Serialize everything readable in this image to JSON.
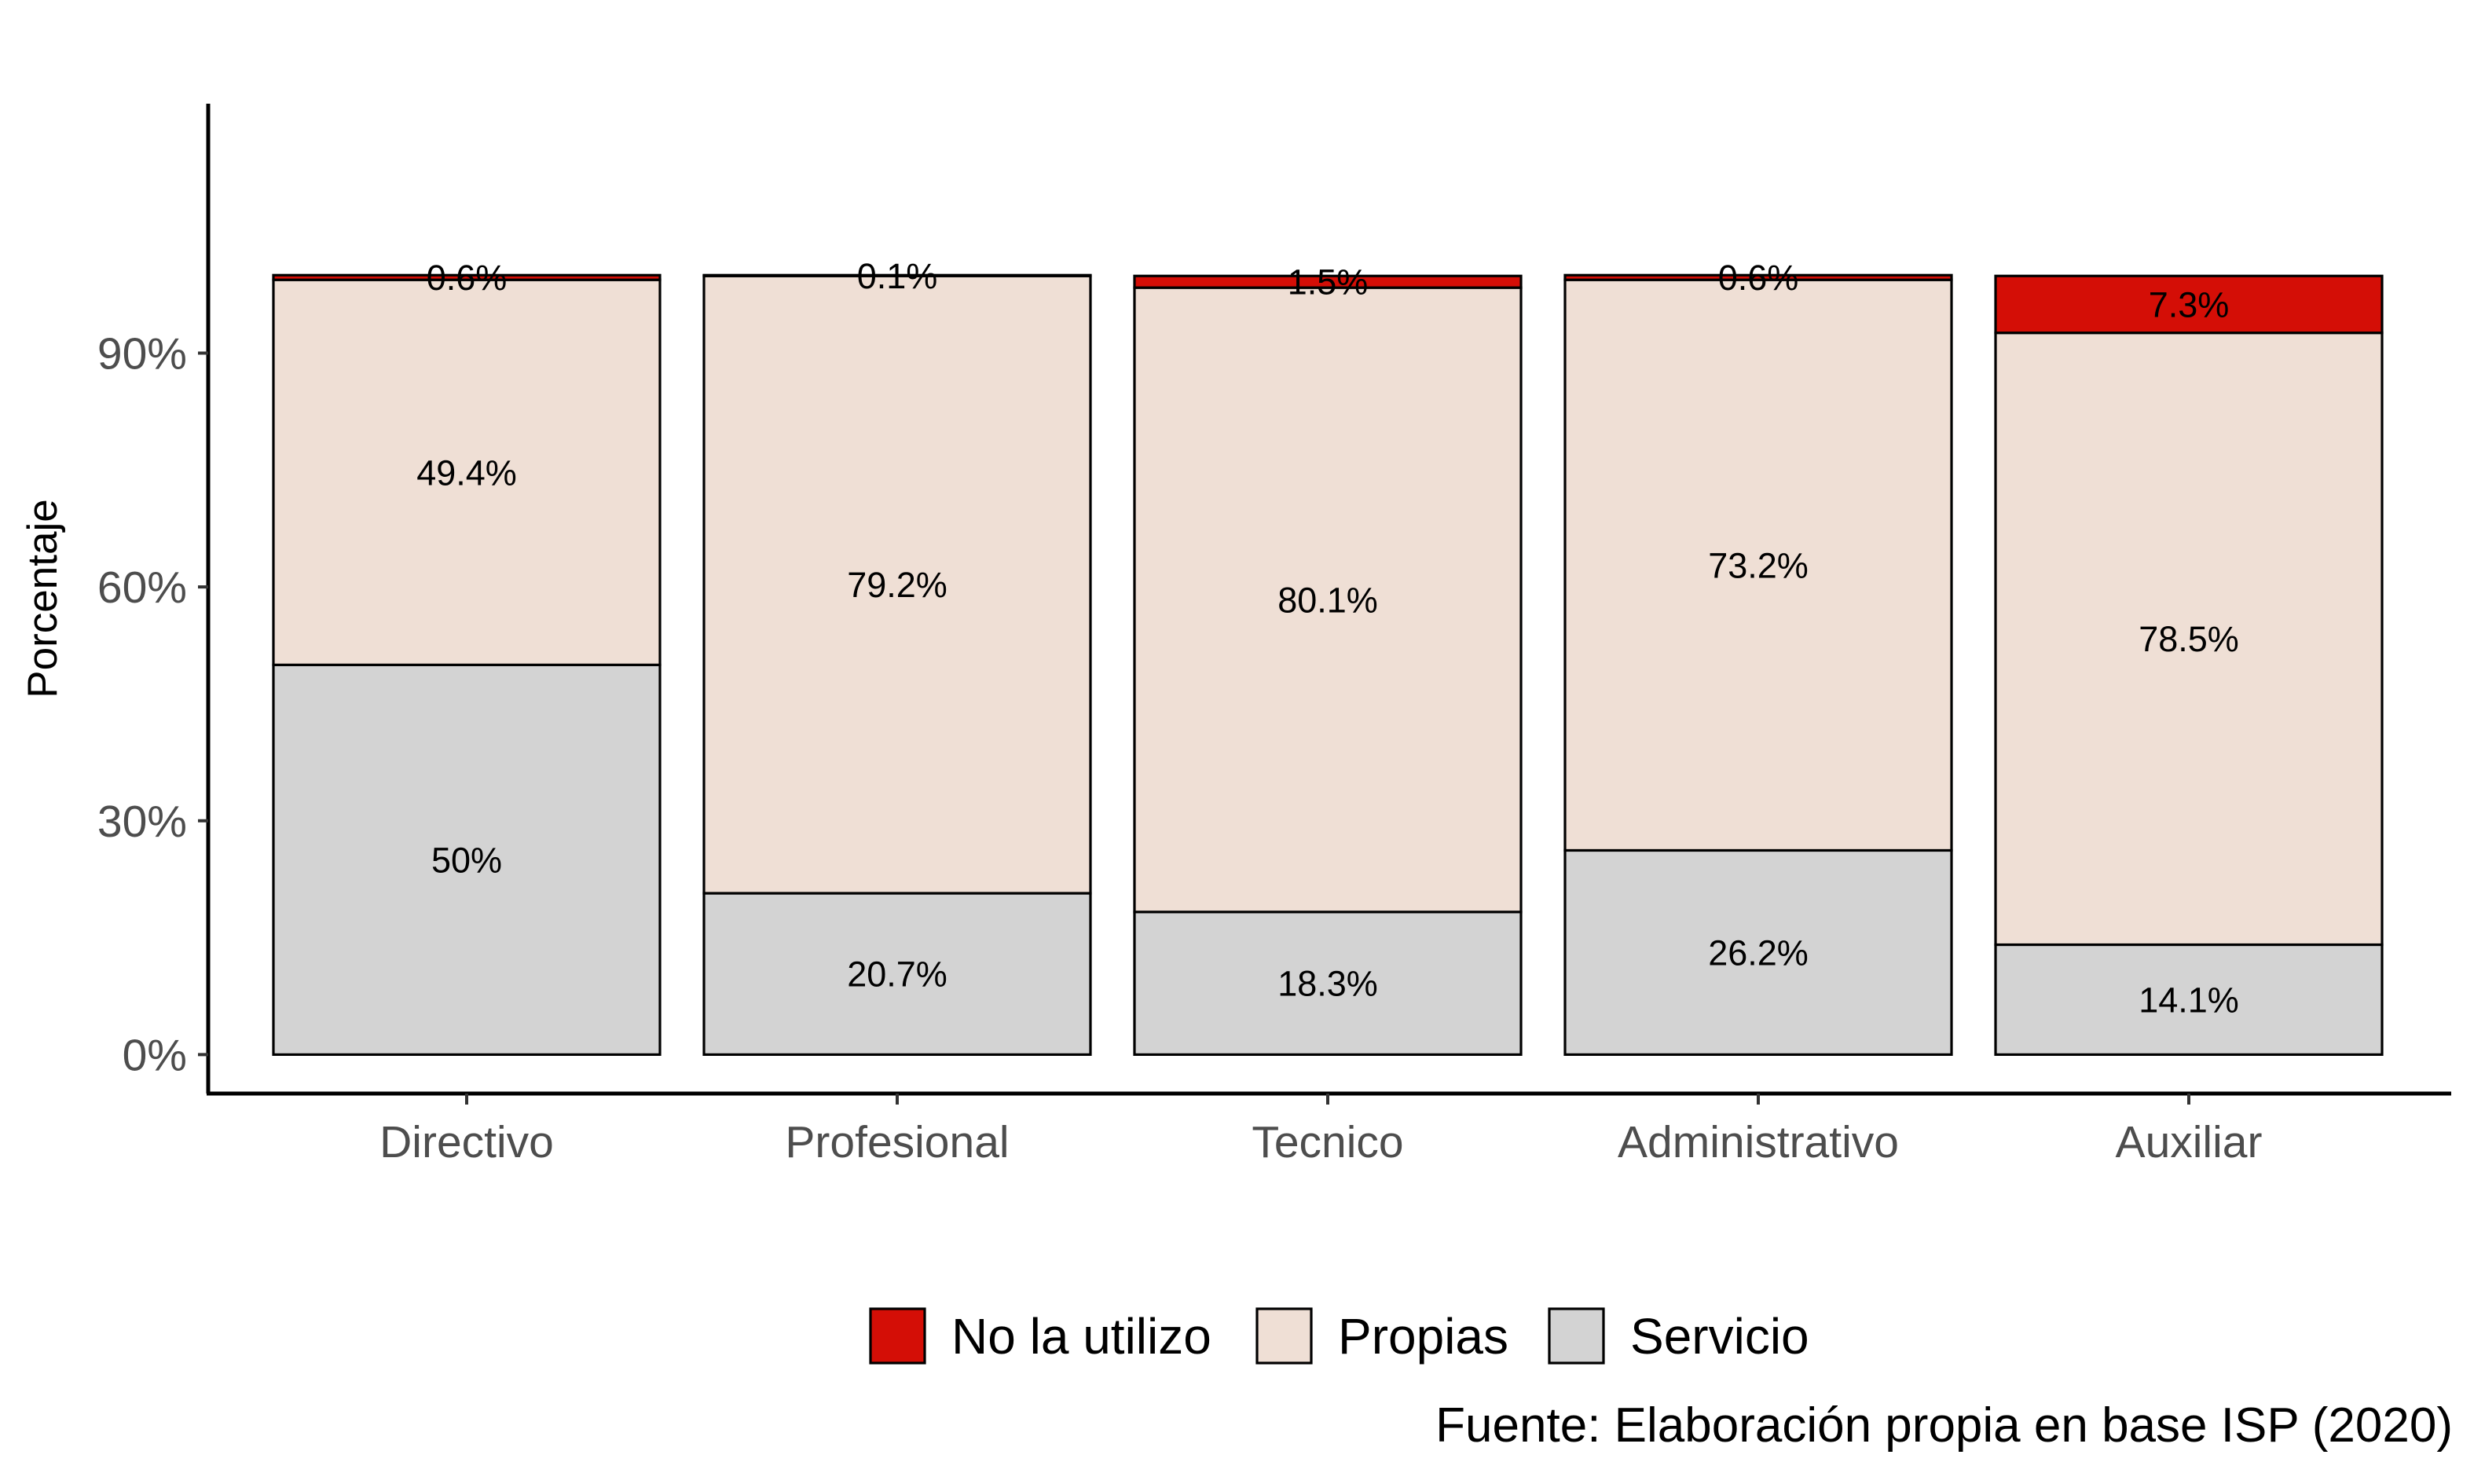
{
  "chart_data": {
    "type": "bar",
    "stacked": true,
    "categories": [
      "Directivo",
      "Profesional",
      "Tecnico",
      "Administrativo",
      "Auxiliar"
    ],
    "series": [
      {
        "name": "Servicio",
        "color": "#d3d3d3",
        "values": [
          50,
          20.7,
          18.3,
          26.2,
          14.1
        ],
        "labels": [
          "50%",
          "20.7%",
          "18.3%",
          "26.2%",
          "14.1%"
        ]
      },
      {
        "name": "Propias",
        "color": "#efdfd5",
        "values": [
          49.4,
          79.2,
          80.1,
          73.2,
          78.5
        ],
        "labels": [
          "49.4%",
          "79.2%",
          "80.1%",
          "73.2%",
          "78.5%"
        ]
      },
      {
        "name": "No la utilizo",
        "color": "#d40e06",
        "values": [
          0.6,
          0.1,
          1.5,
          0.6,
          7.3
        ],
        "labels": [
          "0.6%",
          "0.1%",
          "1.5%",
          "0.6%",
          "7.3%"
        ]
      }
    ],
    "legend_order": [
      "No la utilizo",
      "Propias",
      "Servicio"
    ],
    "ylabel": "Porcentaje",
    "xlabel": "",
    "ylim": [
      -5,
      122
    ],
    "yticks": [
      0,
      30,
      60,
      90
    ],
    "ytick_labels": [
      "0%",
      "30%",
      "60%",
      "90%"
    ],
    "grid": false,
    "legend_position": "bottom",
    "caption": "Fuente: Elaboración propia en base ISP (2020)"
  }
}
